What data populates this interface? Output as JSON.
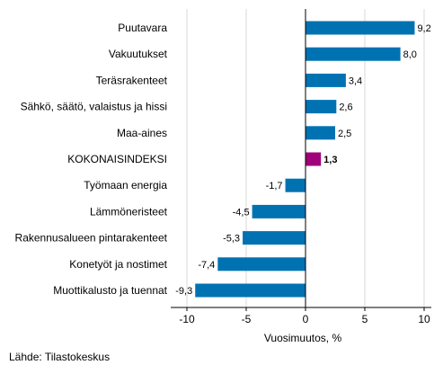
{
  "chart_data": {
    "type": "bar",
    "orientation": "horizontal",
    "title": "",
    "xlabel": "Vuosimuutos, %",
    "ylabel": "",
    "xlim": [
      -10,
      10
    ],
    "xticks": [
      -10,
      -5,
      0,
      5,
      10
    ],
    "xtick_labels": [
      "-10",
      "-5",
      "0",
      "5",
      "10"
    ],
    "grid": true,
    "categories": [
      "Puutavara",
      "Vakuutukset",
      "Teräsrakenteet",
      "Sähkö, säätö, valaistus ja hissi",
      "Maa-aines",
      "KOKONAISINDEKSI",
      "Työmaan energia",
      "Lämmöneristeet",
      "Rakennusalueen pintarakenteet",
      "Konetyöt ja nostimet",
      "Muottikalusto ja tuennat"
    ],
    "values": [
      9.2,
      8.0,
      3.4,
      2.6,
      2.5,
      1.3,
      -1.7,
      -4.5,
      -5.3,
      -7.4,
      -9.3
    ],
    "value_labels": [
      "9,2",
      "8,0",
      "3,4",
      "2,6",
      "2,5",
      "1,3",
      "-1,7",
      "-4,5",
      "-5,3",
      "-7,4",
      "-9,3"
    ],
    "highlight_category": "KOKONAISINDEKSI",
    "colors": {
      "bar": "#0072b2",
      "highlight": "#a0007a",
      "grid": "#d9d9d9",
      "axis": "#000000"
    }
  },
  "source": "Lähde: Tilastokeskus"
}
